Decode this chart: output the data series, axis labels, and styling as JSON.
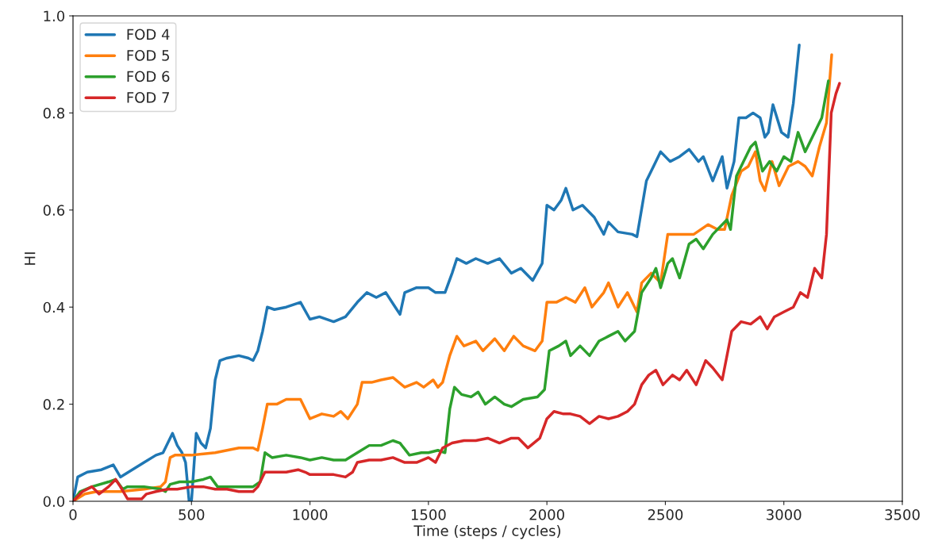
{
  "chart_data": {
    "type": "line",
    "xlabel": "Time (steps / cycles)",
    "ylabel": "HI",
    "xlim": [
      0,
      3500
    ],
    "ylim": [
      0,
      1.0
    ],
    "xticks": [
      0,
      500,
      1000,
      1500,
      2000,
      2500,
      3000,
      3500
    ],
    "yticks": [
      {
        "value": 0,
        "label": "0.0"
      },
      {
        "value": 0.2,
        "label": "0.2"
      },
      {
        "value": 0.4,
        "label": "0.4"
      },
      {
        "value": 0.6,
        "label": "0.6"
      },
      {
        "value": 0.8,
        "label": "0.8"
      },
      {
        "value": 1.0,
        "label": "1.0"
      }
    ],
    "grid": false,
    "legend": "top left",
    "series": [
      {
        "name": "FOD 4",
        "color": "#1f77b4",
        "x": [
          0,
          20,
          60,
          120,
          170,
          200,
          250,
          300,
          350,
          380,
          400,
          420,
          440,
          460,
          475,
          490,
          500,
          520,
          540,
          560,
          580,
          600,
          620,
          650,
          700,
          740,
          760,
          780,
          800,
          820,
          850,
          900,
          960,
          1000,
          1040,
          1100,
          1150,
          1200,
          1240,
          1280,
          1320,
          1360,
          1380,
          1400,
          1450,
          1500,
          1530,
          1570,
          1600,
          1620,
          1660,
          1700,
          1750,
          1800,
          1850,
          1890,
          1940,
          1980,
          2000,
          2030,
          2060,
          2080,
          2110,
          2150,
          2200,
          2240,
          2260,
          2300,
          2360,
          2380,
          2420,
          2450,
          2480,
          2520,
          2560,
          2600,
          2640,
          2660,
          2700,
          2740,
          2760,
          2790,
          2810,
          2840,
          2870,
          2900,
          2920,
          2935,
          2954,
          2990,
          3018,
          3040,
          3065
        ],
        "values": [
          0.0,
          0.05,
          0.06,
          0.065,
          0.075,
          0.05,
          0.065,
          0.08,
          0.095,
          0.1,
          0.12,
          0.14,
          0.115,
          0.1,
          0.08,
          0.0,
          0.0,
          0.14,
          0.12,
          0.11,
          0.15,
          0.25,
          0.29,
          0.295,
          0.3,
          0.295,
          0.29,
          0.31,
          0.35,
          0.4,
          0.395,
          0.4,
          0.41,
          0.375,
          0.38,
          0.37,
          0.38,
          0.41,
          0.43,
          0.42,
          0.43,
          0.4,
          0.385,
          0.43,
          0.44,
          0.44,
          0.43,
          0.43,
          0.47,
          0.5,
          0.49,
          0.5,
          0.49,
          0.5,
          0.47,
          0.48,
          0.455,
          0.49,
          0.61,
          0.6,
          0.62,
          0.645,
          0.6,
          0.61,
          0.585,
          0.55,
          0.575,
          0.555,
          0.55,
          0.545,
          0.66,
          0.69,
          0.72,
          0.7,
          0.71,
          0.725,
          0.7,
          0.71,
          0.66,
          0.71,
          0.645,
          0.7,
          0.79,
          0.79,
          0.8,
          0.79,
          0.75,
          0.76,
          0.817,
          0.76,
          0.75,
          0.82,
          0.94
        ]
      },
      {
        "name": "FOD 5",
        "color": "#ff7f0e",
        "x": [
          0,
          50,
          100,
          200,
          300,
          370,
          390,
          410,
          430,
          500,
          600,
          700,
          760,
          780,
          800,
          820,
          860,
          900,
          960,
          1000,
          1050,
          1100,
          1130,
          1160,
          1200,
          1220,
          1260,
          1300,
          1350,
          1400,
          1450,
          1480,
          1520,
          1540,
          1560,
          1590,
          1620,
          1650,
          1700,
          1730,
          1780,
          1820,
          1860,
          1900,
          1950,
          1980,
          2000,
          2040,
          2080,
          2120,
          2160,
          2190,
          2240,
          2260,
          2300,
          2340,
          2380,
          2400,
          2440,
          2480,
          2510,
          2540,
          2580,
          2620,
          2680,
          2720,
          2750,
          2780,
          2820,
          2850,
          2880,
          2900,
          2920,
          2950,
          2980,
          3020,
          3060,
          3090,
          3120,
          3150,
          3180,
          3202
        ],
        "values": [
          0.0,
          0.015,
          0.02,
          0.02,
          0.025,
          0.03,
          0.04,
          0.09,
          0.095,
          0.095,
          0.1,
          0.11,
          0.11,
          0.105,
          0.15,
          0.2,
          0.2,
          0.21,
          0.21,
          0.17,
          0.18,
          0.175,
          0.185,
          0.17,
          0.2,
          0.245,
          0.245,
          0.25,
          0.255,
          0.235,
          0.245,
          0.235,
          0.25,
          0.235,
          0.245,
          0.3,
          0.34,
          0.32,
          0.33,
          0.31,
          0.335,
          0.31,
          0.34,
          0.32,
          0.31,
          0.33,
          0.41,
          0.41,
          0.42,
          0.41,
          0.44,
          0.4,
          0.43,
          0.45,
          0.4,
          0.43,
          0.39,
          0.45,
          0.47,
          0.45,
          0.55,
          0.55,
          0.55,
          0.55,
          0.57,
          0.56,
          0.56,
          0.63,
          0.68,
          0.69,
          0.72,
          0.66,
          0.64,
          0.7,
          0.65,
          0.69,
          0.7,
          0.69,
          0.67,
          0.73,
          0.78,
          0.92
        ]
      },
      {
        "name": "FOD 6",
        "color": "#2ca02c",
        "x": [
          0,
          30,
          80,
          150,
          180,
          210,
          230,
          300,
          370,
          390,
          410,
          450,
          500,
          550,
          580,
          610,
          700,
          760,
          790,
          810,
          840,
          900,
          960,
          1000,
          1050,
          1100,
          1150,
          1200,
          1250,
          1300,
          1350,
          1380,
          1420,
          1470,
          1500,
          1540,
          1570,
          1590,
          1610,
          1640,
          1680,
          1710,
          1740,
          1780,
          1820,
          1850,
          1900,
          1960,
          1990,
          2010,
          2050,
          2080,
          2100,
          2140,
          2180,
          2220,
          2260,
          2300,
          2330,
          2370,
          2400,
          2440,
          2460,
          2480,
          2510,
          2530,
          2560,
          2600,
          2630,
          2660,
          2700,
          2740,
          2760,
          2775,
          2800,
          2830,
          2860,
          2880,
          2910,
          2940,
          2970,
          3000,
          3030,
          3060,
          3090,
          3120,
          3160,
          3188
        ],
        "values": [
          0.0,
          0.02,
          0.03,
          0.04,
          0.045,
          0.025,
          0.03,
          0.03,
          0.025,
          0.02,
          0.035,
          0.04,
          0.04,
          0.045,
          0.05,
          0.03,
          0.03,
          0.03,
          0.04,
          0.1,
          0.09,
          0.095,
          0.09,
          0.085,
          0.09,
          0.085,
          0.085,
          0.1,
          0.115,
          0.115,
          0.125,
          0.12,
          0.095,
          0.1,
          0.1,
          0.105,
          0.1,
          0.19,
          0.235,
          0.22,
          0.215,
          0.225,
          0.2,
          0.215,
          0.2,
          0.195,
          0.21,
          0.215,
          0.23,
          0.31,
          0.32,
          0.33,
          0.3,
          0.32,
          0.3,
          0.33,
          0.34,
          0.35,
          0.33,
          0.35,
          0.43,
          0.46,
          0.48,
          0.44,
          0.49,
          0.5,
          0.46,
          0.53,
          0.54,
          0.52,
          0.55,
          0.57,
          0.58,
          0.56,
          0.67,
          0.7,
          0.73,
          0.74,
          0.68,
          0.7,
          0.68,
          0.71,
          0.7,
          0.76,
          0.72,
          0.75,
          0.79,
          0.866
        ]
      },
      {
        "name": "FOD 7",
        "color": "#d62728",
        "x": [
          0,
          40,
          80,
          110,
          150,
          180,
          200,
          230,
          260,
          290,
          310,
          350,
          400,
          440,
          500,
          550,
          600,
          650,
          700,
          760,
          780,
          810,
          850,
          900,
          950,
          980,
          1000,
          1050,
          1100,
          1150,
          1180,
          1200,
          1250,
          1300,
          1350,
          1400,
          1450,
          1500,
          1530,
          1560,
          1600,
          1650,
          1700,
          1750,
          1800,
          1850,
          1880,
          1920,
          1970,
          2000,
          2030,
          2070,
          2100,
          2140,
          2180,
          2220,
          2260,
          2300,
          2340,
          2370,
          2400,
          2430,
          2460,
          2490,
          2530,
          2560,
          2590,
          2630,
          2670,
          2700,
          2740,
          2780,
          2820,
          2860,
          2900,
          2930,
          2960,
          3000,
          3040,
          3070,
          3100,
          3130,
          3160,
          3180,
          3200,
          3220,
          3235
        ],
        "values": [
          0.0,
          0.02,
          0.03,
          0.015,
          0.03,
          0.045,
          0.03,
          0.005,
          null,
          0.005,
          0.015,
          0.02,
          0.025,
          0.025,
          0.03,
          0.03,
          0.025,
          0.025,
          0.02,
          0.02,
          0.03,
          0.06,
          0.06,
          0.06,
          0.065,
          0.06,
          0.055,
          0.055,
          0.055,
          0.05,
          0.06,
          0.08,
          0.085,
          0.085,
          0.09,
          0.08,
          0.08,
          0.09,
          0.08,
          0.11,
          0.12,
          0.125,
          0.125,
          0.13,
          0.12,
          0.13,
          0.13,
          0.11,
          0.13,
          0.17,
          0.185,
          0.18,
          0.18,
          0.175,
          0.16,
          0.175,
          0.17,
          0.175,
          0.185,
          0.2,
          0.24,
          0.26,
          0.27,
          0.24,
          0.26,
          0.25,
          0.27,
          0.24,
          0.29,
          0.275,
          0.25,
          0.35,
          0.37,
          0.365,
          0.38,
          0.355,
          0.38,
          0.39,
          0.4,
          0.43,
          0.42,
          0.48,
          0.46,
          0.55,
          0.8,
          0.84,
          0.861
        ]
      }
    ]
  }
}
